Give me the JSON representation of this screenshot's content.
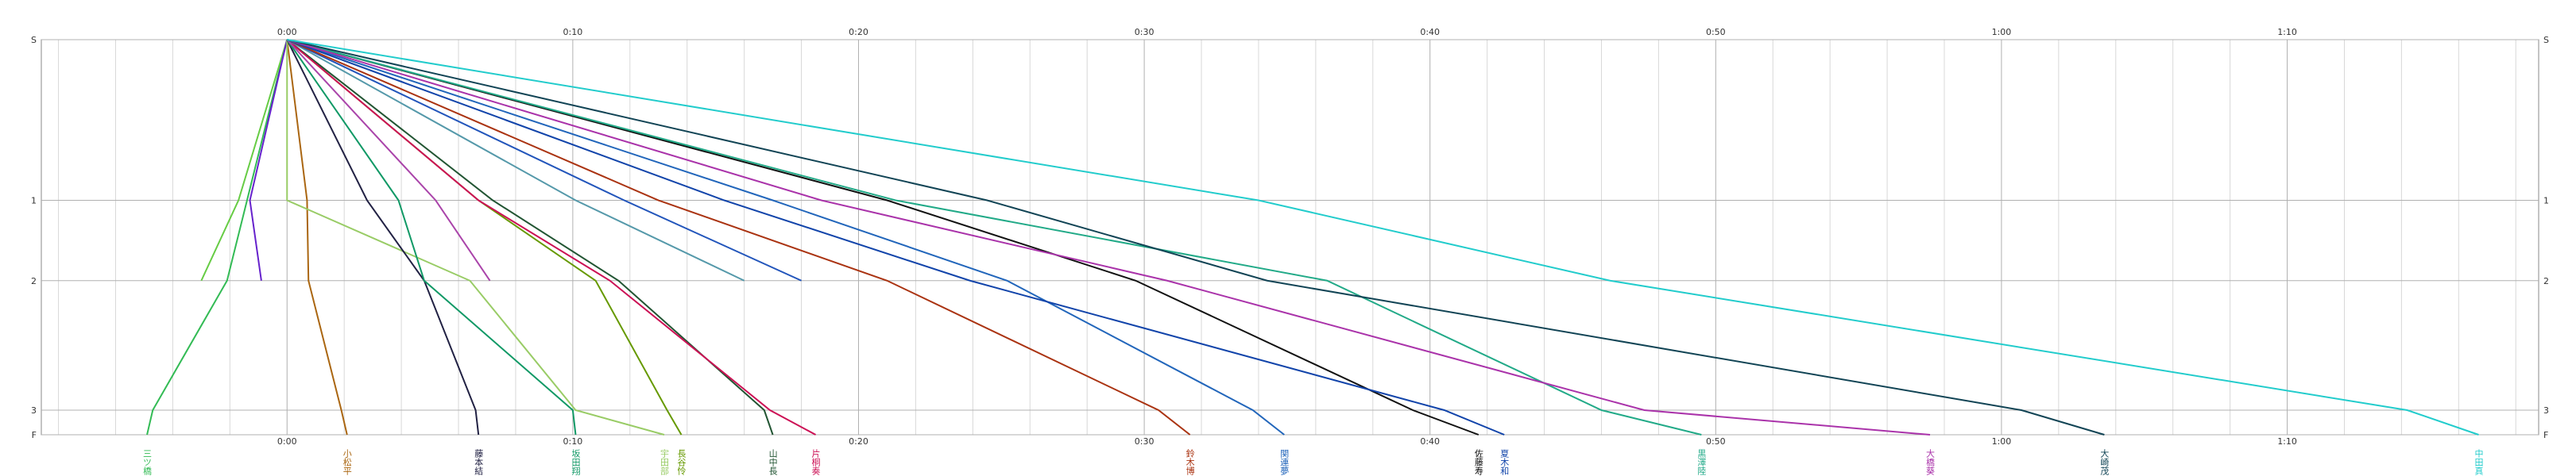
{
  "chart_data": {
    "type": "line",
    "stations": [
      "S",
      "1",
      "2",
      "3",
      "F"
    ],
    "station_distance": [
      0,
      98,
      147,
      226,
      241
    ],
    "xlim": [
      -8.6,
      78.8
    ],
    "xticks": [
      {
        "value": 0,
        "label": "0:00"
      },
      {
        "value": 10,
        "label": "0:10"
      },
      {
        "value": 20,
        "label": "0:20"
      },
      {
        "value": 30,
        "label": "0:30"
      },
      {
        "value": 40,
        "label": "0:40"
      },
      {
        "value": 50,
        "label": "0:50"
      },
      {
        "value": 60,
        "label": "1:00"
      },
      {
        "value": 70,
        "label": "1:10"
      }
    ],
    "xminorticks": [
      -8,
      -6,
      -4,
      -2,
      2,
      4,
      6,
      8,
      12,
      14,
      16,
      18,
      22,
      24,
      26,
      28,
      32,
      34,
      36,
      38,
      42,
      44,
      46,
      48,
      52,
      54,
      56,
      58,
      62,
      64,
      66,
      68,
      72,
      74,
      76,
      78
    ],
    "grid": true,
    "series": [
      {
        "name": "三ツ橋",
        "color": "#33bb55",
        "values": [
          0,
          -1.4,
          -2.1,
          -4.7,
          -4.9
        ]
      },
      {
        "color": "#66cc44",
        "values": [
          0,
          -1.7,
          -3.0
        ]
      },
      {
        "color": "#6622cc",
        "values": [
          0,
          -1.3,
          -0.9
        ]
      },
      {
        "name": "小松平",
        "color": "#aa6611",
        "values": [
          0,
          0.7,
          0.75,
          1.9,
          2.1
        ]
      },
      {
        "name": "宇田部",
        "color": "#99cc66",
        "values": [
          0,
          0,
          6.4,
          10.1,
          13.2
        ]
      },
      {
        "name": "藤本結",
        "color": "#222244",
        "values": [
          0,
          2.8,
          4.8,
          6.6,
          6.7
        ]
      },
      {
        "name": "坂田翔",
        "color": "#119966",
        "values": [
          0,
          3.9,
          4.8,
          10.0,
          10.1
        ]
      },
      {
        "name": "長谷怜",
        "color": "#669900",
        "values": [
          0,
          6.7,
          10.8,
          13.3,
          13.8
        ]
      },
      {
        "name": "山中長",
        "color": "#225533",
        "values": [
          0,
          7.2,
          11.6,
          16.7,
          17.0
        ]
      },
      {
        "name": "片桐奏",
        "color": "#cc1155",
        "values": [
          0,
          6.7,
          11.3,
          16.9,
          18.5
        ]
      },
      {
        "color": "#aa44aa",
        "values": [
          0,
          5.2,
          7.1
        ]
      },
      {
        "color": "#5599aa",
        "values": [
          0,
          10.1,
          16.0
        ]
      },
      {
        "color": "#2255bb",
        "values": [
          0,
          11.8,
          18.0
        ]
      },
      {
        "name": "鈴木博",
        "color": "#aa3311",
        "values": [
          0,
          13.0,
          21.0,
          30.5,
          31.6
        ]
      },
      {
        "name": "関連夢",
        "color": "#2266bb",
        "values": [
          0,
          17.0,
          25.2,
          33.8,
          34.9
        ]
      },
      {
        "name": "佐藤寿",
        "color": "#111111",
        "values": [
          0,
          21.0,
          29.7,
          39.4,
          41.7
        ]
      },
      {
        "name": "夏木和",
        "color": "#1144aa",
        "values": [
          0,
          15.3,
          23.9,
          40.5,
          42.6
        ]
      },
      {
        "name": "黒澤陸",
        "color": "#22aa88",
        "values": [
          0,
          21.3,
          36.4,
          46.0,
          49.5
        ]
      },
      {
        "name": "大橋葵",
        "color": "#aa33aa",
        "values": [
          0,
          18.7,
          30.8,
          47.5,
          57.5
        ]
      },
      {
        "name": "大崎茂",
        "color": "#114455",
        "values": [
          0,
          24.5,
          34.3,
          60.7,
          63.6
        ]
      },
      {
        "name": "中田真",
        "color": "#22cccc",
        "values": [
          0,
          34.0,
          46.3,
          74.2,
          76.7
        ]
      }
    ]
  }
}
